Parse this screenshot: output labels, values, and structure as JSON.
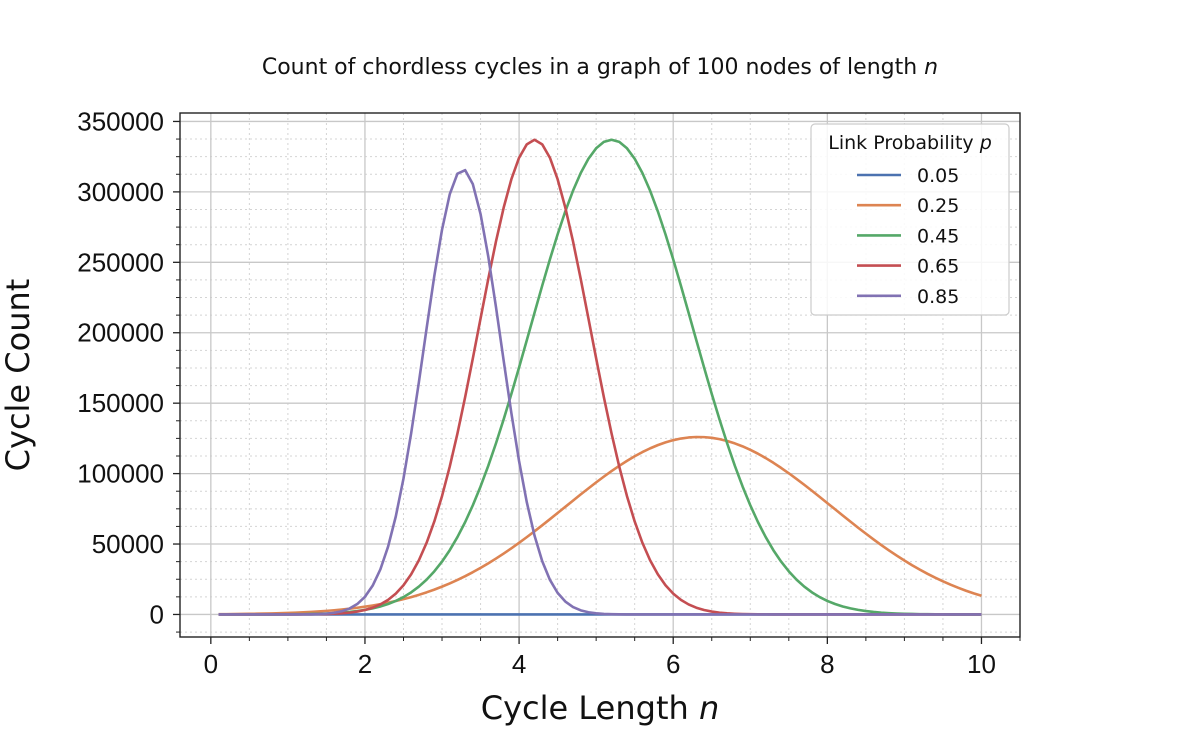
{
  "chart_data": {
    "type": "line",
    "title_prefix": "Count of chordless cycles in a graph of 100 nodes of length",
    "title_var": "n",
    "xlabel_prefix": "Cycle Length",
    "xlabel_var": "n",
    "ylabel": "Cycle Count",
    "xlim": [
      -0.4,
      10.5
    ],
    "ylim": [
      -16000,
      356000
    ],
    "xticks": [
      0,
      2,
      4,
      6,
      8,
      10
    ],
    "xtick_labels": [
      "0",
      "2",
      "4",
      "6",
      "8",
      "10"
    ],
    "yticks": [
      0,
      50000,
      100000,
      150000,
      200000,
      250000,
      300000,
      350000
    ],
    "ytick_labels": [
      "0",
      "50000",
      "100000",
      "150000",
      "200000",
      "250000",
      "300000",
      "350000"
    ],
    "grid": true,
    "legend": {
      "title_prefix": "Link Probability",
      "title_var": "p",
      "position": "top-right"
    },
    "x_range": [
      0.1,
      10
    ],
    "series": [
      {
        "name": "0.05",
        "color": "#4c72b0",
        "peak_x": 6.0,
        "peak_y": 0,
        "spread": 1.0
      },
      {
        "name": "0.25",
        "color": "#dd8452",
        "peak_x": 6.33,
        "peak_y": 126000,
        "spread": 1.73
      },
      {
        "name": "0.45",
        "color": "#55a868",
        "peak_x": 5.2,
        "peak_y": 337000,
        "spread": 1.05
      },
      {
        "name": "0.65",
        "color": "#c44e52",
        "peak_x": 4.2,
        "peak_y": 337000,
        "spread": 0.72
      },
      {
        "name": "0.85",
        "color": "#8172b3",
        "peak_x": 3.27,
        "peak_y": 316000,
        "spread": 0.5
      }
    ]
  }
}
